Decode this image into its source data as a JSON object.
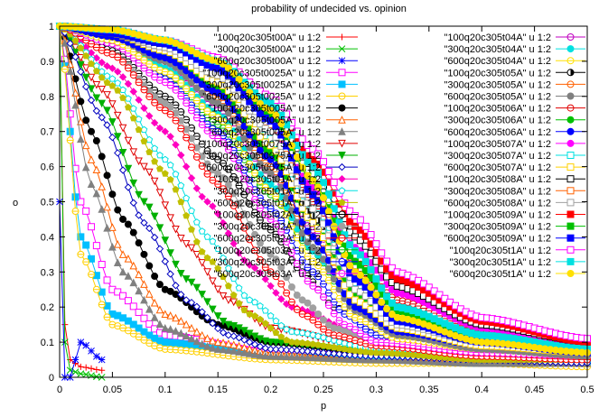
{
  "chart_data": {
    "type": "line",
    "title": "probability of undecided vs. opinion",
    "xlabel": "p",
    "ylabel": "o",
    "xlim": [
      0,
      0.5
    ],
    "ylim": [
      0,
      1
    ],
    "x_ticks": [
      "0",
      "0.05",
      "0.1",
      "0.15",
      "0.2",
      "0.25",
      "0.3",
      "0.35",
      "0.4",
      "0.45",
      "0.5"
    ],
    "y_ticks": [
      "0",
      "0.1",
      "0.2",
      "0.3",
      "0.4",
      "0.5",
      "0.6",
      "0.7",
      "0.8",
      "0.9",
      "1"
    ],
    "grid": false,
    "legend_position": "top-right (two columns)",
    "series": [
      {
        "name": "\"100q20c305t00A\" u 1:2",
        "color": "#ff0000",
        "marker": "plus",
        "x": [
          0,
          0.005,
          0.01,
          0.02,
          0.04
        ],
        "values": [
          1,
          0.15,
          0.05,
          0.03,
          0.02
        ]
      },
      {
        "name": "\"300q20c305t00A\" u 1:2",
        "color": "#00c000",
        "marker": "cross",
        "x": [
          0,
          0.005,
          0.01,
          0.02,
          0.04
        ],
        "values": [
          1,
          0.1,
          0.02,
          0.01,
          0.0
        ]
      },
      {
        "name": "\"600q20c305t00A\" u 1:2",
        "color": "#0000ff",
        "marker": "star",
        "x": [
          0,
          0.005,
          0.01,
          0.02,
          0.04
        ],
        "values": [
          0.5,
          0.0,
          0.0,
          0.1,
          0.05
        ]
      },
      {
        "name": "\"100q20c305t0025A\" u 1:2",
        "color": "#ff00ff",
        "marker": "box",
        "x": [
          0,
          0.02,
          0.05,
          0.1,
          0.2,
          0.3,
          0.4,
          0.5
        ],
        "values": [
          1,
          0.5,
          0.25,
          0.12,
          0.07,
          0.06,
          0.05,
          0.05
        ]
      },
      {
        "name": "\"300q20c305t0025A\" u 1:2",
        "color": "#00c0ff",
        "marker": "fbox",
        "x": [
          0,
          0.02,
          0.05,
          0.1,
          0.2,
          0.3,
          0.4,
          0.5
        ],
        "values": [
          1,
          0.4,
          0.18,
          0.1,
          0.06,
          0.05,
          0.04,
          0.04
        ]
      },
      {
        "name": "\"600q20c305t0025A\" u 1:2",
        "color": "#ffd000",
        "marker": "circle",
        "x": [
          0,
          0.02,
          0.05,
          0.1,
          0.2,
          0.3,
          0.4,
          0.5
        ],
        "values": [
          1,
          0.35,
          0.15,
          0.08,
          0.05,
          0.04,
          0.04,
          0.03
        ]
      },
      {
        "name": "\"100q20c305t005A\" u 1:2",
        "color": "#000000",
        "marker": "fcircle",
        "x": [
          0,
          0.03,
          0.06,
          0.1,
          0.15,
          0.2,
          0.3,
          0.4,
          0.5
        ],
        "values": [
          1,
          0.7,
          0.45,
          0.25,
          0.15,
          0.1,
          0.07,
          0.06,
          0.05
        ]
      },
      {
        "name": "\"300q20c305t005A\" u 1:2",
        "color": "#ff6000",
        "marker": "triangle",
        "x": [
          0,
          0.03,
          0.06,
          0.1,
          0.15,
          0.2,
          0.3,
          0.4,
          0.5
        ],
        "values": [
          1,
          0.62,
          0.35,
          0.18,
          0.1,
          0.07,
          0.05,
          0.05,
          0.04
        ]
      },
      {
        "name": "\"600q20c305t005A\" u 1:2",
        "color": "#808080",
        "marker": "ftriangle",
        "x": [
          0,
          0.03,
          0.06,
          0.1,
          0.15,
          0.2,
          0.3,
          0.4,
          0.5
        ],
        "values": [
          1,
          0.55,
          0.3,
          0.14,
          0.08,
          0.06,
          0.05,
          0.04,
          0.04
        ]
      },
      {
        "name": "\"100q20c305t0075A\" u 1:2",
        "color": "#e00000",
        "marker": "itriangle",
        "x": [
          0,
          0.04,
          0.08,
          0.12,
          0.16,
          0.2,
          0.3,
          0.4,
          0.5
        ],
        "values": [
          1,
          0.82,
          0.6,
          0.38,
          0.22,
          0.14,
          0.08,
          0.06,
          0.05
        ]
      },
      {
        "name": "\"300q20c305t0075A\" u 1:2",
        "color": "#00b000",
        "marker": "fitriangle",
        "x": [
          0,
          0.04,
          0.08,
          0.12,
          0.16,
          0.2,
          0.3,
          0.4,
          0.5
        ],
        "values": [
          1,
          0.78,
          0.5,
          0.28,
          0.15,
          0.1,
          0.07,
          0.05,
          0.05
        ]
      },
      {
        "name": "\"600q20c305t0075A\" u 1:2",
        "color": "#0000c0",
        "marker": "diamond",
        "x": [
          0,
          0.04,
          0.08,
          0.12,
          0.16,
          0.2,
          0.3,
          0.4,
          0.5
        ],
        "values": [
          1,
          0.74,
          0.44,
          0.22,
          0.12,
          0.08,
          0.06,
          0.05,
          0.04
        ]
      },
      {
        "name": "\"100q20c305t01A\" u 1:2",
        "color": "#ff00c0",
        "marker": "fdiamond",
        "x": [
          0,
          0.05,
          0.1,
          0.14,
          0.18,
          0.22,
          0.3,
          0.4,
          0.5
        ],
        "values": [
          1,
          0.88,
          0.7,
          0.5,
          0.32,
          0.2,
          0.1,
          0.07,
          0.06
        ]
      },
      {
        "name": "\"300q20c305t01A\" u 1:2",
        "color": "#00e0e0",
        "marker": "pentagon",
        "x": [
          0,
          0.05,
          0.1,
          0.14,
          0.18,
          0.22,
          0.3,
          0.4,
          0.5
        ],
        "values": [
          1,
          0.85,
          0.62,
          0.4,
          0.22,
          0.13,
          0.08,
          0.06,
          0.05
        ]
      },
      {
        "name": "\"600q20c305t01A\" u 1:2",
        "color": "#c0c000",
        "marker": "fpentagon",
        "x": [
          0,
          0.05,
          0.1,
          0.14,
          0.18,
          0.22,
          0.3,
          0.4,
          0.5
        ],
        "values": [
          1,
          0.83,
          0.58,
          0.34,
          0.18,
          0.1,
          0.07,
          0.05,
          0.05
        ]
      },
      {
        "name": "\"100q20c305t02A\" u 1:2",
        "color": "#000000",
        "marker": "ocircle",
        "x": [
          0,
          0.05,
          0.1,
          0.15,
          0.2,
          0.23,
          0.26,
          0.3,
          0.4,
          0.5
        ],
        "values": [
          1,
          0.93,
          0.8,
          0.62,
          0.42,
          0.3,
          0.2,
          0.14,
          0.09,
          0.07
        ]
      },
      {
        "name": "\"300q20c305t02A\" u 1:2",
        "color": "#a0a0a0",
        "marker": "fcircle",
        "x": [
          0,
          0.05,
          0.1,
          0.15,
          0.2,
          0.23,
          0.26,
          0.3,
          0.4,
          0.5
        ],
        "values": [
          1,
          0.92,
          0.78,
          0.58,
          0.35,
          0.22,
          0.14,
          0.1,
          0.07,
          0.06
        ]
      },
      {
        "name": "\"600q20c305t02A\" u 1:2",
        "color": "#ff0000",
        "marker": "ocircle",
        "x": [
          0,
          0.05,
          0.1,
          0.15,
          0.2,
          0.23,
          0.26,
          0.3,
          0.4,
          0.5
        ],
        "values": [
          1,
          0.92,
          0.76,
          0.55,
          0.3,
          0.18,
          0.12,
          0.09,
          0.06,
          0.05
        ]
      },
      {
        "name": "\"100q20c305t03A\" u 1:2",
        "color": "#00c000",
        "marker": "ocircle",
        "x": [
          0,
          0.05,
          0.1,
          0.15,
          0.2,
          0.24,
          0.27,
          0.3,
          0.4,
          0.5
        ],
        "values": [
          1,
          0.95,
          0.86,
          0.72,
          0.52,
          0.36,
          0.24,
          0.16,
          0.1,
          0.07
        ]
      },
      {
        "name": "\"300q20c305t03A\" u 1:2",
        "color": "#0000ff",
        "marker": "ocircle",
        "x": [
          0,
          0.05,
          0.1,
          0.15,
          0.2,
          0.24,
          0.27,
          0.3,
          0.4,
          0.5
        ],
        "values": [
          1,
          0.95,
          0.85,
          0.7,
          0.48,
          0.3,
          0.18,
          0.12,
          0.08,
          0.06
        ]
      },
      {
        "name": "\"600q20c305t03A\" u 1:2",
        "color": "#ff00ff",
        "marker": "ocircle",
        "x": [
          0,
          0.05,
          0.1,
          0.15,
          0.2,
          0.24,
          0.27,
          0.3,
          0.4,
          0.5
        ],
        "values": [
          1,
          0.95,
          0.84,
          0.68,
          0.45,
          0.26,
          0.15,
          0.1,
          0.07,
          0.06
        ]
      },
      {
        "name": "\"100q20c305t04A\" u 1:2",
        "color": "#c000c0",
        "marker": "ocircle",
        "x": [
          0,
          0.05,
          0.1,
          0.15,
          0.2,
          0.24,
          0.28,
          0.32,
          0.4,
          0.5
        ],
        "values": [
          1,
          0.96,
          0.88,
          0.76,
          0.58,
          0.42,
          0.28,
          0.18,
          0.11,
          0.08
        ]
      },
      {
        "name": "\"300q20c305t04A\" u 1:2",
        "color": "#00e0e0",
        "marker": "fcircle",
        "x": [
          0,
          0.05,
          0.1,
          0.15,
          0.2,
          0.24,
          0.28,
          0.32,
          0.4,
          0.5
        ],
        "values": [
          1,
          0.96,
          0.88,
          0.75,
          0.55,
          0.36,
          0.2,
          0.13,
          0.09,
          0.07
        ]
      },
      {
        "name": "\"600q20c305t04A\" u 1:2",
        "color": "#ffe000",
        "marker": "ocircle",
        "x": [
          0,
          0.05,
          0.1,
          0.15,
          0.2,
          0.24,
          0.28,
          0.32,
          0.4,
          0.5
        ],
        "values": [
          1,
          0.96,
          0.87,
          0.74,
          0.53,
          0.33,
          0.17,
          0.11,
          0.08,
          0.06
        ]
      },
      {
        "name": "\"100q20c305t05A\" u 1:2",
        "color": "#000000",
        "marker": "hcircle",
        "x": [
          0,
          0.05,
          0.1,
          0.15,
          0.2,
          0.24,
          0.28,
          0.32,
          0.4,
          0.5
        ],
        "values": [
          1,
          0.97,
          0.9,
          0.8,
          0.63,
          0.46,
          0.3,
          0.2,
          0.12,
          0.08
        ]
      },
      {
        "name": "\"300q20c305t05A\" u 1:2",
        "color": "#ff6000",
        "marker": "ocircle",
        "x": [
          0,
          0.05,
          0.1,
          0.15,
          0.2,
          0.24,
          0.28,
          0.32,
          0.4,
          0.5
        ],
        "values": [
          1,
          0.97,
          0.9,
          0.79,
          0.6,
          0.4,
          0.22,
          0.14,
          0.09,
          0.07
        ]
      },
      {
        "name": "\"600q20c305t05A\" u 1:2",
        "color": "#808080",
        "marker": "fcircle",
        "x": [
          0,
          0.05,
          0.1,
          0.15,
          0.2,
          0.24,
          0.28,
          0.32,
          0.4,
          0.5
        ],
        "values": [
          1,
          0.97,
          0.9,
          0.78,
          0.58,
          0.37,
          0.19,
          0.12,
          0.08,
          0.06
        ]
      },
      {
        "name": "\"100q20c305t06A\" u 1:2",
        "color": "#e00000",
        "marker": "ocircle",
        "x": [
          0,
          0.05,
          0.1,
          0.15,
          0.2,
          0.24,
          0.28,
          0.32,
          0.4,
          0.5
        ],
        "values": [
          1,
          0.97,
          0.92,
          0.83,
          0.67,
          0.5,
          0.33,
          0.22,
          0.13,
          0.09
        ]
      },
      {
        "name": "\"300q20c305t06A\" u 1:2",
        "color": "#00c000",
        "marker": "fcircle",
        "x": [
          0,
          0.05,
          0.1,
          0.15,
          0.2,
          0.24,
          0.28,
          0.32,
          0.4,
          0.5
        ],
        "values": [
          1,
          0.97,
          0.92,
          0.82,
          0.64,
          0.44,
          0.24,
          0.15,
          0.1,
          0.07
        ]
      },
      {
        "name": "\"600q20c305t06A\" u 1:2",
        "color": "#0000ff",
        "marker": "fcircle",
        "x": [
          0,
          0.05,
          0.1,
          0.15,
          0.2,
          0.24,
          0.28,
          0.32,
          0.4,
          0.5
        ],
        "values": [
          1,
          0.97,
          0.91,
          0.81,
          0.62,
          0.4,
          0.2,
          0.13,
          0.09,
          0.07
        ]
      },
      {
        "name": "\"100q20c305t07A\" u 1:2",
        "color": "#ff00ff",
        "marker": "fcircle",
        "x": [
          0,
          0.05,
          0.1,
          0.15,
          0.2,
          0.24,
          0.28,
          0.32,
          0.4,
          0.5
        ],
        "values": [
          1,
          0.98,
          0.93,
          0.86,
          0.71,
          0.54,
          0.37,
          0.24,
          0.14,
          0.09
        ]
      },
      {
        "name": "\"300q20c305t07A\" u 1:2",
        "color": "#00e0e0",
        "marker": "box",
        "x": [
          0,
          0.05,
          0.1,
          0.15,
          0.2,
          0.24,
          0.28,
          0.32,
          0.4,
          0.5
        ],
        "values": [
          1,
          0.98,
          0.93,
          0.85,
          0.68,
          0.48,
          0.27,
          0.16,
          0.1,
          0.08
        ]
      },
      {
        "name": "\"600q20c305t07A\" u 1:2",
        "color": "#ffd000",
        "marker": "box",
        "x": [
          0,
          0.05,
          0.1,
          0.15,
          0.2,
          0.24,
          0.28,
          0.32,
          0.4,
          0.5
        ],
        "values": [
          1,
          0.98,
          0.93,
          0.84,
          0.66,
          0.44,
          0.22,
          0.14,
          0.09,
          0.07
        ]
      },
      {
        "name": "\"100q20c305t08A\" u 1:2",
        "color": "#000000",
        "marker": "box",
        "x": [
          0,
          0.05,
          0.1,
          0.15,
          0.2,
          0.24,
          0.28,
          0.32,
          0.4,
          0.5
        ],
        "values": [
          1,
          0.98,
          0.94,
          0.88,
          0.74,
          0.58,
          0.4,
          0.26,
          0.15,
          0.1
        ]
      },
      {
        "name": "\"300q20c305t08A\" u 1:2",
        "color": "#ff6000",
        "marker": "box",
        "x": [
          0,
          0.05,
          0.1,
          0.15,
          0.2,
          0.24,
          0.28,
          0.32,
          0.4,
          0.5
        ],
        "values": [
          1,
          0.98,
          0.94,
          0.87,
          0.72,
          0.52,
          0.3,
          0.18,
          0.11,
          0.08
        ]
      },
      {
        "name": "\"600q20c305t08A\" u 1:2",
        "color": "#a0a0a0",
        "marker": "box",
        "x": [
          0,
          0.05,
          0.1,
          0.15,
          0.2,
          0.24,
          0.28,
          0.32,
          0.4,
          0.5
        ],
        "values": [
          1,
          0.98,
          0.94,
          0.86,
          0.7,
          0.48,
          0.25,
          0.15,
          0.1,
          0.07
        ]
      },
      {
        "name": "\"100q20c305t09A\" u 1:2",
        "color": "#ff0000",
        "marker": "fbox",
        "x": [
          0,
          0.05,
          0.1,
          0.15,
          0.2,
          0.24,
          0.28,
          0.32,
          0.4,
          0.5
        ],
        "values": [
          1,
          0.98,
          0.95,
          0.9,
          0.77,
          0.62,
          0.43,
          0.28,
          0.16,
          0.1
        ]
      },
      {
        "name": "\"300q20c305t09A\" u 1:2",
        "color": "#00c000",
        "marker": "fbox",
        "x": [
          0,
          0.05,
          0.1,
          0.15,
          0.2,
          0.24,
          0.28,
          0.32,
          0.4,
          0.5
        ],
        "values": [
          1,
          0.98,
          0.95,
          0.89,
          0.75,
          0.56,
          0.33,
          0.19,
          0.11,
          0.08
        ]
      },
      {
        "name": "\"600q20c305t09A\" u 1:2",
        "color": "#0000ff",
        "marker": "fbox",
        "x": [
          0,
          0.05,
          0.1,
          0.15,
          0.2,
          0.24,
          0.28,
          0.32,
          0.4,
          0.5
        ],
        "values": [
          1,
          0.98,
          0.95,
          0.88,
          0.73,
          0.52,
          0.28,
          0.16,
          0.1,
          0.07
        ]
      },
      {
        "name": "\"100q20c305t1A\" u 1:2",
        "color": "#ff00ff",
        "marker": "box",
        "x": [
          0,
          0.05,
          0.1,
          0.15,
          0.2,
          0.24,
          0.28,
          0.32,
          0.4,
          0.5
        ],
        "values": [
          1,
          0.99,
          0.96,
          0.91,
          0.8,
          0.65,
          0.46,
          0.3,
          0.17,
          0.11
        ]
      },
      {
        "name": "\"300q20c305t1A\" u 1:2",
        "color": "#00e0e0",
        "marker": "fbox",
        "x": [
          0,
          0.05,
          0.1,
          0.15,
          0.2,
          0.24,
          0.28,
          0.32,
          0.4,
          0.5
        ],
        "values": [
          1,
          0.99,
          0.96,
          0.9,
          0.78,
          0.6,
          0.36,
          0.2,
          0.12,
          0.08
        ]
      },
      {
        "name": "\"600q20c305t1A\" u 1:2",
        "color": "#ffe000",
        "marker": "fcircle",
        "x": [
          0,
          0.05,
          0.1,
          0.15,
          0.2,
          0.24,
          0.28,
          0.32,
          0.4,
          0.5
        ],
        "values": [
          1,
          0.99,
          0.96,
          0.9,
          0.76,
          0.56,
          0.3,
          0.17,
          0.1,
          0.07
        ]
      }
    ]
  }
}
